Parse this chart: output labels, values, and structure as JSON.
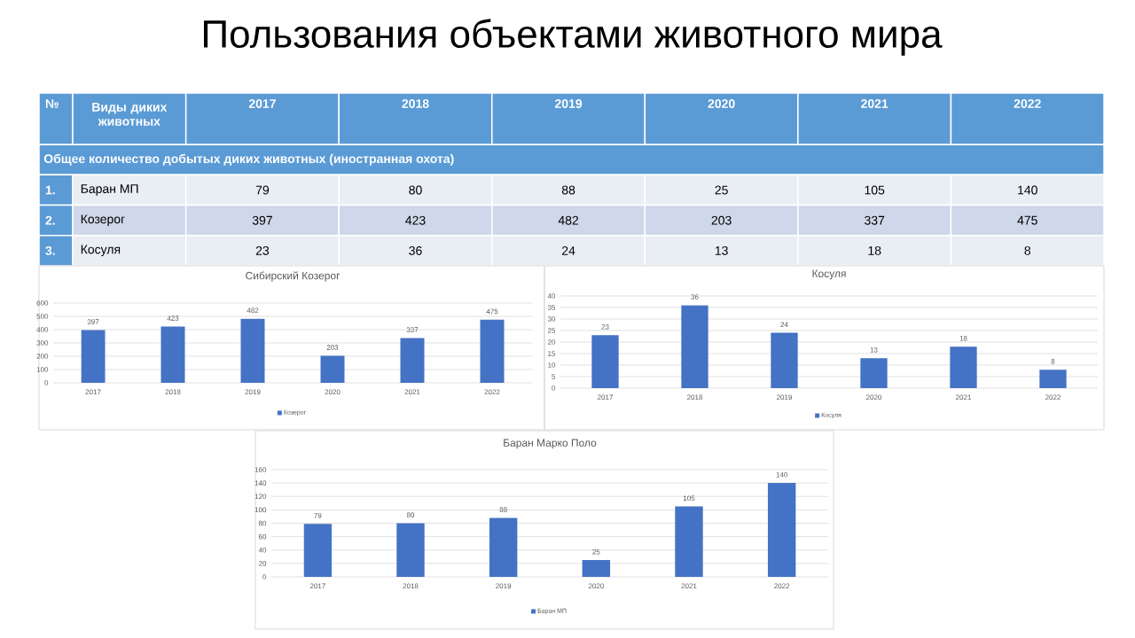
{
  "chart_data": [
    {
      "type": "heatmap",
      "title": "Пользования объектами животного мира",
      "subtitle": "Общее количество добытых диких животных (иностранная охота)",
      "ylabel": "Виды диких животных",
      "annotations": [
        "№",
        "1.",
        "2.",
        "3."
      ],
      "categories": [
        "2017",
        "2018",
        "2019",
        "2020",
        "2021",
        "2022"
      ],
      "y_categories": [
        "Баран МП",
        "Козерог",
        "Косуля"
      ],
      "cells": [
        [
          79,
          80,
          88,
          25,
          105,
          140
        ],
        [
          397,
          423,
          482,
          203,
          337,
          475
        ],
        [
          23,
          36,
          24,
          13,
          18,
          8
        ]
      ],
      "data_labels": true
    },
    {
      "type": "bar",
      "title": "Сибирский Козерог",
      "categories": [
        "2017",
        "2018",
        "2019",
        "2020",
        "2021",
        "2022"
      ],
      "series": [
        {
          "name": "Козерог",
          "color": "#4472c4",
          "values": [
            397,
            423,
            482,
            203,
            337,
            475
          ]
        }
      ],
      "ylim": [
        0,
        600
      ],
      "yticks": [
        0,
        100,
        200,
        300,
        400,
        500,
        600
      ],
      "grid": "y",
      "legend": "bottom",
      "data_labels": true
    },
    {
      "type": "bar",
      "title": "Косуля",
      "categories": [
        "2017",
        "2018",
        "2019",
        "2020",
        "2021",
        "2022"
      ],
      "series": [
        {
          "name": "Косуля",
          "color": "#4472c4",
          "values": [
            23,
            36,
            24,
            13,
            18,
            8
          ]
        }
      ],
      "ylim": [
        0,
        40
      ],
      "yticks": [
        0,
        5,
        10,
        15,
        20,
        25,
        30,
        35,
        40
      ],
      "grid": "y",
      "legend": "bottom",
      "data_labels": true
    },
    {
      "type": "bar",
      "title": "Баран Марко Поло",
      "categories": [
        "2017",
        "2018",
        "2019",
        "2020",
        "2021",
        "2022"
      ],
      "series": [
        {
          "name": "Баран МП",
          "color": "#4472c4",
          "values": [
            79,
            80,
            88,
            25,
            105,
            140
          ]
        }
      ],
      "ylim": [
        0,
        160
      ],
      "yticks": [
        0,
        20,
        40,
        60,
        80,
        100,
        120,
        140,
        160
      ],
      "grid": "y",
      "legend": "bottom",
      "data_labels": true
    }
  ]
}
